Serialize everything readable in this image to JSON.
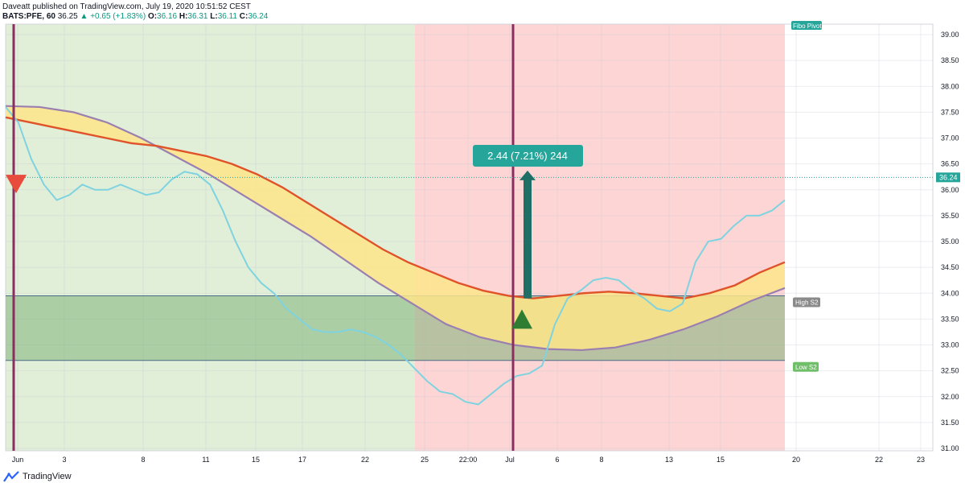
{
  "header": {
    "author_line": "Daveatt published on TradingView.com, July 19, 2020 10:51:52 CEST",
    "symbol": "BATS:PFE, 60",
    "last": "36.25",
    "arrow": "▲",
    "change": "+0.65 (+1.83%)",
    "o_label": "O:",
    "o_value": "36.16",
    "h_label": "H:",
    "h_value": "36.31",
    "l_label": "L:",
    "l_value": "36.11",
    "c_label": "C:",
    "c_value": "36.24"
  },
  "footer": {
    "brand": "TradingView"
  },
  "colors": {
    "bull": "#26a69a",
    "bear": "#b74ad8",
    "green_bg": "#e1efd8",
    "red_bg": "#fdd5d5",
    "zone": "#7fb37a",
    "ma_fast": "#7fd3e0",
    "ma_orange": "#e0532a",
    "ma_purple": "#9b7fb0",
    "cloud": "#fde58a"
  },
  "chart_data": {
    "type": "candlestick",
    "ylim": [
      31.0,
      39.0
    ],
    "y_ticks": [
      "31.00",
      "31.50",
      "32.00",
      "32.50",
      "33.00",
      "33.50",
      "34.00",
      "34.50",
      "35.00",
      "35.50",
      "36.00",
      "36.50",
      "37.00",
      "37.50",
      "38.00",
      "38.50",
      "39.00"
    ],
    "x_ticks": [
      "Jun",
      "3",
      "8",
      "11",
      "15",
      "17",
      "22",
      "25",
      "22:00",
      "Jul",
      "6",
      "8",
      "13",
      "15",
      "20",
      "22",
      "23"
    ],
    "last_price_label": "36.24",
    "last_price": 36.24,
    "measure_label": "2.44 (7.21%) 244",
    "measure": {
      "from": 33.9,
      "to": 36.34
    },
    "zone": {
      "top": 33.95,
      "bottom": 32.7,
      "top_label": "High S2",
      "bottom_label": "Low S2"
    },
    "pivot_label": "Fibo Pivot",
    "signals": [
      {
        "type": "sell",
        "price": 36.15
      },
      {
        "type": "buy",
        "price": 33.5
      }
    ],
    "series": [
      {
        "role": "fast_ma",
        "values": [
          37.6,
          37.3,
          36.6,
          36.1,
          35.8,
          35.9,
          36.1,
          36.0,
          36.0,
          36.1,
          36.0,
          35.9,
          35.95,
          36.2,
          36.35,
          36.3,
          36.1,
          35.6,
          35.0,
          34.5,
          34.2,
          34.0,
          33.7,
          33.5,
          33.3,
          33.25,
          33.25,
          33.3,
          33.25,
          33.15,
          33.0,
          32.8,
          32.55,
          32.3,
          32.1,
          32.05,
          31.9,
          31.85,
          32.05,
          32.25,
          32.4,
          32.45,
          32.6,
          33.4,
          33.9,
          34.05,
          34.25,
          34.3,
          34.25,
          34.05,
          33.9,
          33.7,
          33.65,
          33.8,
          34.6,
          35.0,
          35.05,
          35.3,
          35.5,
          35.5,
          35.6,
          35.8
        ]
      },
      {
        "role": "orange_ma",
        "values": [
          37.4,
          37.3,
          37.2,
          37.1,
          37.0,
          36.9,
          36.85,
          36.75,
          36.65,
          36.5,
          36.3,
          36.05,
          35.75,
          35.45,
          35.15,
          34.85,
          34.6,
          34.4,
          34.2,
          34.05,
          33.95,
          33.9,
          33.95,
          34.0,
          34.03,
          34.0,
          33.95,
          33.9,
          34.0,
          34.15,
          34.4,
          34.6
        ]
      },
      {
        "role": "purple_ma",
        "values": [
          37.62,
          37.6,
          37.5,
          37.3,
          37.0,
          36.65,
          36.3,
          35.9,
          35.5,
          35.1,
          34.65,
          34.2,
          33.8,
          33.4,
          33.15,
          33.0,
          32.92,
          32.9,
          32.95,
          33.1,
          33.3,
          33.55,
          33.85,
          34.1
        ]
      }
    ]
  }
}
